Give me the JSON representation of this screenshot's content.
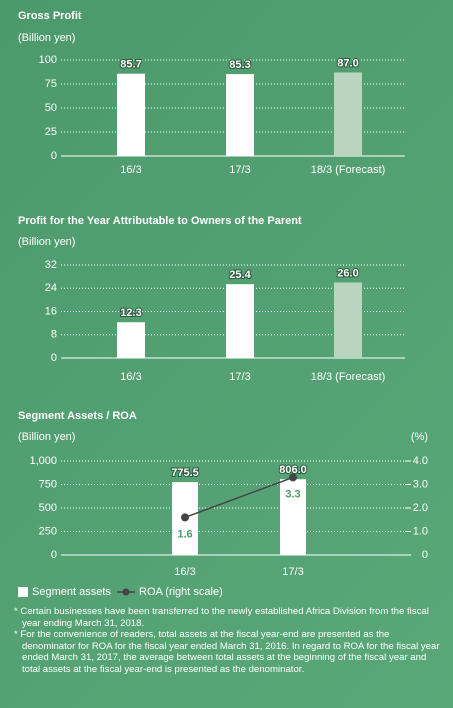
{
  "chart_data": [
    {
      "type": "bar",
      "title": "Gross Profit",
      "unit": "(Billion yen)",
      "categories": [
        "16/3",
        "17/3",
        "18/3 (Forecast)"
      ],
      "values": [
        85.7,
        85.3,
        87.0
      ],
      "value_labels": [
        "85.7",
        "85.3",
        "87.0"
      ],
      "colors": [
        "#ffffff",
        "#ffffff",
        "#b9d4bf"
      ],
      "ylim": [
        0,
        100
      ],
      "yticks": [
        0,
        25,
        50,
        75,
        100
      ],
      "grid": true
    },
    {
      "type": "bar",
      "title": "Profit for the Year Attributable to Owners of the Parent",
      "unit": "(Billion yen)",
      "categories": [
        "16/3",
        "17/3",
        "18/3 (Forecast)"
      ],
      "values": [
        12.3,
        25.4,
        26.0
      ],
      "value_labels": [
        "12.3",
        "25.4",
        "26.0"
      ],
      "colors": [
        "#ffffff",
        "#ffffff",
        "#b9d4bf"
      ],
      "ylim": [
        0,
        32
      ],
      "yticks": [
        0,
        8,
        16,
        24,
        32
      ],
      "grid": true
    },
    {
      "type": "bar-line",
      "title": "Segment Assets / ROA",
      "unit": "(Billion yen)",
      "y2unit": "(%)",
      "categories": [
        "16/3",
        "17/3"
      ],
      "series": [
        {
          "name": "Segment assets",
          "type": "bar",
          "color": "#ffffff",
          "values": [
            775.5,
            806.0
          ],
          "value_labels": [
            "775.5",
            "806.0"
          ]
        },
        {
          "name": "ROA (right scale)",
          "type": "line",
          "axis": "y2",
          "color": "#444444",
          "values": [
            1.6,
            3.3
          ]
        }
      ],
      "ylim": [
        0,
        1000
      ],
      "yticks": [
        0,
        250,
        500,
        750,
        {
          "value": 1000,
          "label": "1,000"
        }
      ],
      "y2lim": [
        0,
        4
      ],
      "y2ticks": [
        0,
        {
          "value": 1,
          "label": "1.0"
        },
        {
          "value": 2,
          "label": "2.0"
        },
        {
          "value": 3,
          "label": "3.0"
        },
        {
          "value": 4,
          "label": "4.0"
        }
      ],
      "grid": true,
      "legend": "bottom-left"
    }
  ],
  "notes": [
    "* Certain businesses have been transferred to the newly established Africa Division from the fiscal year ending March 31, 2018.",
    "* For the convenience of readers, total assets at the fiscal year-end are presented as the denominator for ROA for the fiscal year ended March 31, 2016. In regard to ROA for the fiscal year ended March 31, 2017, the average between total assets at the beginning of the fiscal year and total assets at the fiscal year-end is presented as the denominator."
  ]
}
